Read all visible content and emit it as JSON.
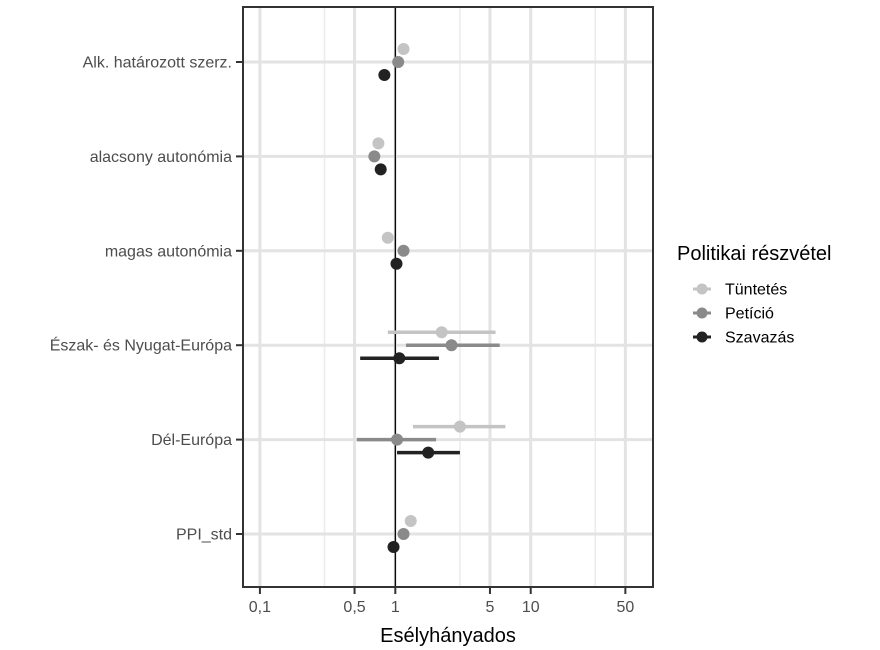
{
  "chart_data": {
    "type": "forest",
    "xlabel": "Esélyhányados",
    "x_scale": "log",
    "xlim": [
      0.075,
      80
    ],
    "x_ticks": [
      {
        "value": 0.1,
        "label": "0,1"
      },
      {
        "value": 0.5,
        "label": "0,5"
      },
      {
        "value": 1,
        "label": "1"
      },
      {
        "value": 5,
        "label": "5"
      },
      {
        "value": 10,
        "label": "10"
      },
      {
        "value": 50,
        "label": "50"
      }
    ],
    "x_grid_major": [
      0.1,
      0.5,
      1,
      5,
      10,
      50
    ],
    "x_grid_minor": [
      0.3,
      3,
      30
    ],
    "reference_line": 1,
    "grid": true,
    "categories": [
      "Alk. határozott szerz.",
      "alacsony autonómia",
      "magas autonómia",
      "Észak- és Nyugat-Európa",
      "Dél-Európa",
      "PPI_std"
    ],
    "legend": {
      "title": "Politikai részvétel",
      "position": "right"
    },
    "series": [
      {
        "name": "Tüntetés",
        "color": "#c4c4c4",
        "estimates": [
          1.15,
          0.75,
          0.88,
          2.2,
          3.0,
          1.3
        ],
        "ci_low": [
          null,
          null,
          null,
          0.88,
          1.35,
          null
        ],
        "ci_high": [
          null,
          null,
          null,
          5.5,
          6.5,
          null
        ]
      },
      {
        "name": "Petíció",
        "color": "#8a8a8a",
        "estimates": [
          1.05,
          0.7,
          1.15,
          2.6,
          1.03,
          1.15
        ],
        "ci_low": [
          null,
          null,
          null,
          1.2,
          0.52,
          null
        ],
        "ci_high": [
          null,
          null,
          null,
          5.9,
          2.0,
          null
        ]
      },
      {
        "name": "Szavazás",
        "color": "#222222",
        "estimates": [
          0.83,
          0.78,
          1.02,
          1.07,
          1.75,
          0.97
        ],
        "ci_low": [
          null,
          null,
          null,
          0.55,
          1.03,
          null
        ],
        "ci_high": [
          null,
          null,
          null,
          2.1,
          3.0,
          null
        ]
      }
    ]
  }
}
